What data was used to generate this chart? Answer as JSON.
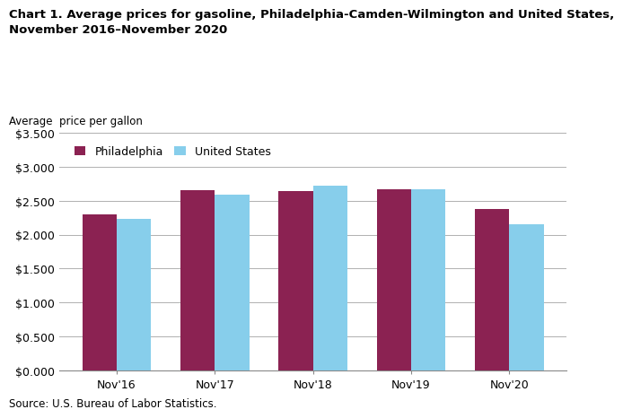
{
  "title": "Chart 1. Average prices for gasoline, Philadelphia-Camden-Wilmington and United States,\nNovember 2016–November 2020",
  "ylabel": "Average  price per gallon",
  "source": "Source: U.S. Bureau of Labor Statistics.",
  "categories": [
    "Nov'16",
    "Nov'17",
    "Nov'18",
    "Nov'19",
    "Nov'20"
  ],
  "philadelphia": [
    2.297,
    2.659,
    2.649,
    2.664,
    2.38
  ],
  "united_states": [
    2.229,
    2.588,
    2.72,
    2.663,
    2.158
  ],
  "philadelphia_color": "#8B2252",
  "united_states_color": "#87CEEB",
  "philadelphia_label": "Philadelphia",
  "united_states_label": "United States",
  "ylim": [
    0.0,
    3.5
  ],
  "yticks": [
    0.0,
    0.5,
    1.0,
    1.5,
    2.0,
    2.5,
    3.0,
    3.5
  ],
  "bar_width": 0.35,
  "background_color": "#ffffff",
  "grid_color": "#b0b0b0",
  "title_fontsize": 9.5,
  "axis_label_fontsize": 8.5,
  "tick_fontsize": 9,
  "legend_fontsize": 9,
  "source_fontsize": 8.5
}
